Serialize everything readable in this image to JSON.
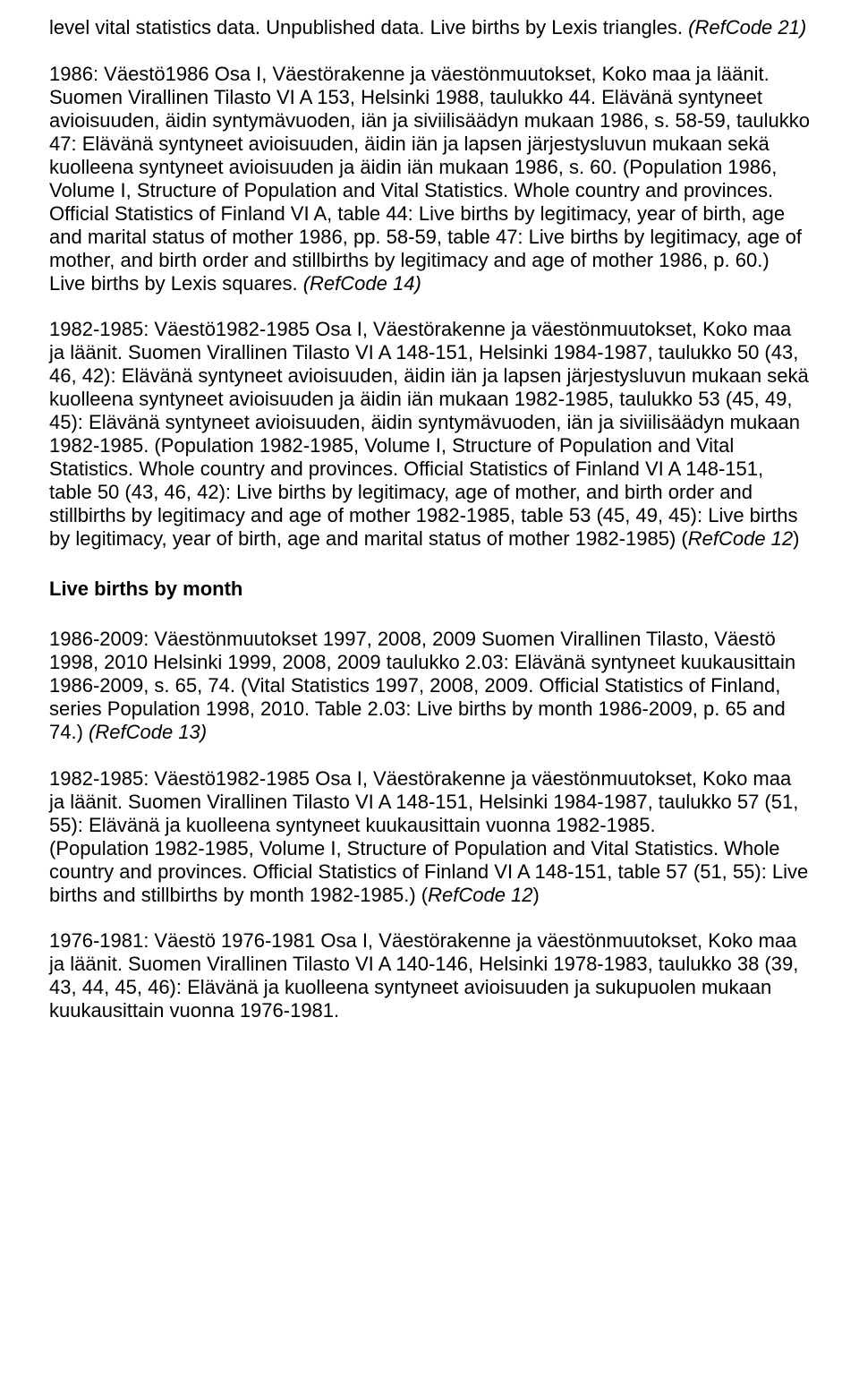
{
  "text": {
    "p1_a": "level vital statistics data. Unpublished data. Live births by Lexis triangles. ",
    "p1_b": "(RefCode 21)",
    "p2_a": "1986: Väestö1986 Osa I, Väestörakenne ja väestönmuutokset, Koko maa ja läänit. Suomen Virallinen Tilasto VI A 153, Helsinki 1988, taulukko 44. Elävänä syntyneet avioisuuden, äidin syntymävuoden, iän ja siviilisäädyn mukaan 1986, s. 58-59, taulukko 47: Elävänä syntyneet avioisuuden, äidin iän ja lapsen järjestysluvun mukaan sekä kuolleena syntyneet avioisuuden ja äidin iän mukaan 1986, s. 60. (Population 1986, Volume I, Structure of Population and Vital Statistics. Whole country and provinces. Official Statistics of Finland VI A, table 44: Live births by legitimacy, year of birth, age and marital status of mother 1986, pp. 58-59, table 47: Live births by legitimacy, age of mother, and birth order and stillbirths by legitimacy and age of mother 1986, p. 60.) Live births by Lexis squares. ",
    "p2_b": "(RefCode 14)",
    "p3_a": "1982-1985: Väestö1982-1985 Osa I, Väestörakenne ja väestönmuutokset, Koko maa ja läänit. Suomen Virallinen Tilasto VI A 148-151, Helsinki 1984-1987, taulukko 50 (43, 46, 42): Elävänä syntyneet avioisuuden, äidin iän ja lapsen järjestysluvun mukaan sekä kuolleena syntyneet avioisuuden ja äidin iän mukaan 1982-1985, taulukko 53 (45, 49, 45): Elävänä syntyneet avioisuuden, äidin syntymävuoden, iän ja siviilisäädyn mukaan 1982-1985. (Population 1982-1985, Volume I, Structure of Population and Vital Statistics. Whole country and provinces. Official Statistics of Finland VI A 148-151, table 50 (43, 46, 42): Live births by legitimacy, age of mother, and birth order and stillbirths by legitimacy and age of mother 1982-1985, table 53 (45, 49, 45): Live births by legitimacy, year of birth, age and marital status of mother 1982-1985) (",
    "p3_b": "RefCode 12",
    "p3_c": ")",
    "heading1": "Live births by month",
    "p4_a": "1986-2009: Väestönmuutokset 1997, 2008, 2009 Suomen Virallinen Tilasto, Väestö 1998, 2010 Helsinki 1999, 2008, 2009 taulukko 2.03: Elävänä syntyneet kuukausittain 1986-2009, s. 65, 74. (Vital Statistics 1997, 2008, 2009. Official Statistics of Finland, series Population 1998, 2010. Table 2.03: Live births by month 1986-2009, p. 65 and 74.) ",
    "p4_b": "(RefCode 13)",
    "p5_a": "1982-1985: Väestö1982-1985 Osa I, Väestörakenne ja väestönmuutokset, Koko maa ja läänit. Suomen Virallinen Tilasto VI A 148-151, Helsinki 1984-1987, taulukko 57 (51, 55): Elävänä ja kuolleena syntyneet kuukausittain vuonna 1982-1985.",
    "p5_b": "(Population 1982-1985, Volume I, Structure of Population and Vital Statistics. Whole country and provinces. Official Statistics of Finland VI A 148-151, table 57 (51, 55): Live births and stillbirths by month 1982-1985.) (",
    "p5_c": "RefCode 12",
    "p5_d": ")",
    "p6": "1976-1981: Väestö 1976-1981 Osa I, Väestörakenne ja väestönmuutokset, Koko maa ja läänit. Suomen Virallinen Tilasto VI A 140-146, Helsinki 1978-1983, taulukko 38 (39, 43, 44, 45, 46): Elävänä ja kuolleena syntyneet avioisuuden ja sukupuolen mukaan kuukausittain vuonna 1976-1981."
  }
}
